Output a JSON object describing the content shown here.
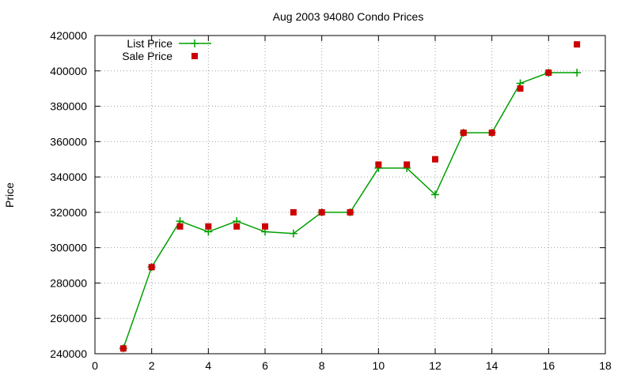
{
  "chart_data": {
    "type": "line",
    "title": "Aug 2003 94080 Condo Prices",
    "xlabel": "",
    "ylabel": "Price",
    "xlim": [
      0,
      18
    ],
    "ylim": [
      240000,
      420000
    ],
    "xticks": [
      0,
      2,
      4,
      6,
      8,
      10,
      12,
      14,
      16,
      18
    ],
    "yticks": [
      240000,
      260000,
      280000,
      300000,
      320000,
      340000,
      360000,
      380000,
      400000,
      420000
    ],
    "grid": true,
    "legend_position": "top-left",
    "series": [
      {
        "name": "List Price",
        "kind": "line+points",
        "color": "#00a000",
        "x": [
          1,
          2,
          3,
          4,
          5,
          6,
          7,
          8,
          9,
          10,
          11,
          12,
          13,
          14,
          15,
          16,
          17
        ],
        "y": [
          243000,
          289000,
          315000,
          309000,
          315000,
          309000,
          308000,
          320000,
          320000,
          345000,
          345000,
          330000,
          365000,
          365000,
          393000,
          399000,
          399000
        ]
      },
      {
        "name": "Sale Price",
        "kind": "points",
        "color": "#cc0000",
        "x": [
          1,
          2,
          3,
          4,
          5,
          6,
          7,
          8,
          9,
          10,
          11,
          12,
          13,
          14,
          15,
          16,
          17
        ],
        "y": [
          243000,
          289000,
          312000,
          312000,
          312000,
          312000,
          320000,
          320000,
          320000,
          347000,
          347000,
          350000,
          365000,
          365000,
          390000,
          399000,
          415000
        ]
      }
    ]
  }
}
